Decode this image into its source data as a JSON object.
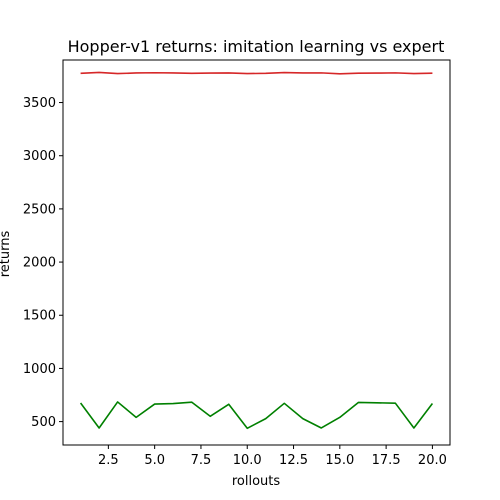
{
  "chart_data": {
    "type": "line",
    "title": "Hopper-v1 returns: imitation learning vs expert",
    "xlabel": "rollouts",
    "ylabel": "returns",
    "xlim": [
      0.05,
      20.95
    ],
    "ylim": [
      280,
      3900
    ],
    "x_ticks": [
      2.5,
      5.0,
      7.5,
      10.0,
      12.5,
      15.0,
      17.5,
      20.0
    ],
    "x_tick_labels": [
      "2.5",
      "5.0",
      "7.5",
      "10.0",
      "12.5",
      "15.0",
      "17.5",
      "20.0"
    ],
    "y_ticks": [
      500,
      1000,
      1500,
      2000,
      2500,
      3000,
      3500
    ],
    "y_tick_labels": [
      "500",
      "1000",
      "1500",
      "2000",
      "2500",
      "3000",
      "3500"
    ],
    "grid": false,
    "x": [
      1,
      2,
      3,
      4,
      5,
      6,
      7,
      8,
      9,
      10,
      11,
      12,
      13,
      14,
      15,
      16,
      17,
      18,
      19,
      20
    ],
    "series": [
      {
        "color": "#d62728",
        "values": [
          3775,
          3783,
          3772,
          3778,
          3780,
          3778,
          3775,
          3777,
          3778,
          3772,
          3775,
          3782,
          3778,
          3779,
          3770,
          3776,
          3777,
          3779,
          3772,
          3776
        ]
      },
      {
        "color": "#008000",
        "values": [
          675,
          440,
          685,
          540,
          665,
          670,
          683,
          550,
          663,
          437,
          528,
          672,
          528,
          440,
          540,
          680,
          677,
          673,
          440,
          670
        ]
      }
    ]
  }
}
